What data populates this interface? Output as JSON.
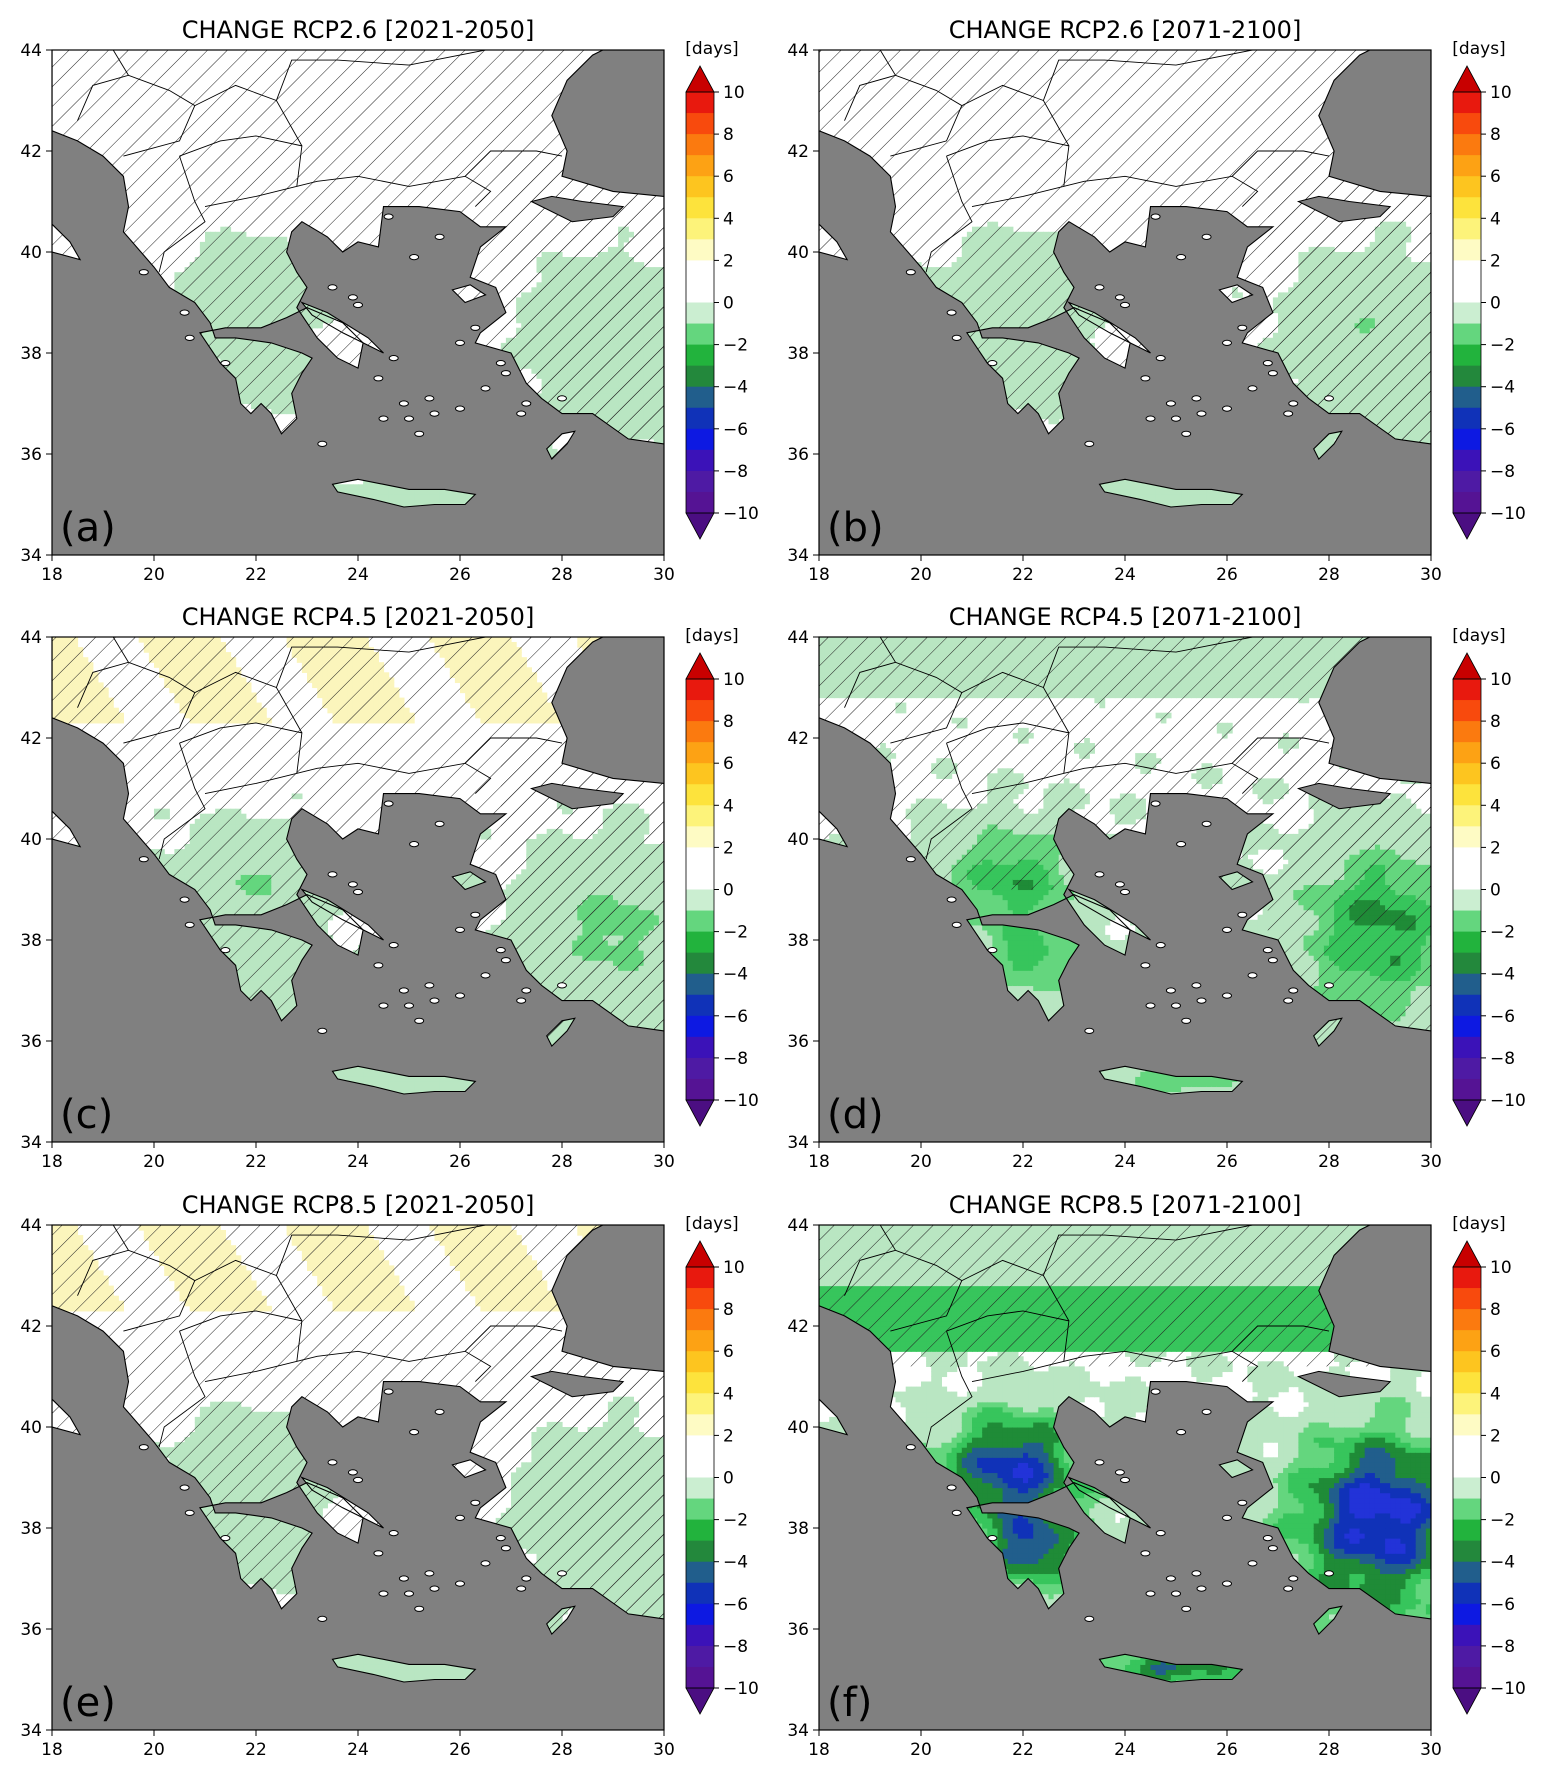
{
  "chart_data": {
    "type": "heatmap",
    "units_label": "[days]",
    "x_ticks": [
      "18",
      "20",
      "22",
      "24",
      "26",
      "28",
      "30"
    ],
    "y_ticks": [
      "44",
      "42",
      "40",
      "38",
      "36",
      "34"
    ],
    "xlim": [
      18,
      30
    ],
    "ylim": [
      34,
      44
    ],
    "colorbar": {
      "ticks": [
        "10",
        "8",
        "6",
        "4",
        "2",
        "0",
        "−2",
        "−4",
        "−6",
        "−8",
        "−10"
      ],
      "extend": "both",
      "range": [
        -10,
        10
      ],
      "colors": [
        "#b20000",
        "#e8190e",
        "#f84a0d",
        "#fb7a0f",
        "#fda214",
        "#fdc51f",
        "#fde33c",
        "#fdf37a",
        "#fefbc4",
        "#ffffff",
        "#ffffff",
        "#cbeed1",
        "#64d67e",
        "#22b33d",
        "#23883c",
        "#215e8c",
        "#1032b8",
        "#0d19e2",
        "#3b12b8",
        "#4e1aa4",
        "#551394"
      ],
      "extend_colors": {
        "low": "#4b0e82",
        "high": "#c80000"
      }
    },
    "colors": {
      "sea": "#808080",
      "land_neutral": "#ffffff",
      "light_green": "#b9e6c2",
      "mid_green": "#37c55c",
      "dark_green": "#1f8b37",
      "blue": "#2233d8",
      "dark_blue": "#3418b0",
      "pale_yellow": "#fbf5bc"
    },
    "panels": [
      {
        "label": "(a)",
        "title": "CHANGE RCP2.6 [2021-2050]",
        "scenario": "RCP2.6",
        "period": "2021-2050",
        "intensity": 1,
        "yellow_north": false
      },
      {
        "label": "(b)",
        "title": "CHANGE RCP2.6 [2071-2100]",
        "scenario": "RCP2.6",
        "period": "2071-2100",
        "intensity": 1.3,
        "yellow_north": false
      },
      {
        "label": "(c)",
        "title": "CHANGE RCP4.5 [2021-2050]",
        "scenario": "RCP4.5",
        "period": "2021-2050",
        "intensity": 1.5,
        "yellow_north": true
      },
      {
        "label": "(d)",
        "title": "CHANGE RCP4.5 [2071-2100]",
        "scenario": "RCP4.5",
        "period": "2071-2100",
        "intensity": 2.8,
        "yellow_north": false
      },
      {
        "label": "(e)",
        "title": "CHANGE RCP8.5 [2021-2050]",
        "scenario": "RCP8.5",
        "period": "2021-2050",
        "intensity": 1.2,
        "yellow_north": true
      },
      {
        "label": "(f)",
        "title": "CHANGE RCP8.5 [2071-2100]",
        "scenario": "RCP8.5",
        "period": "2071-2100",
        "intensity": 5,
        "yellow_north": false
      }
    ]
  }
}
